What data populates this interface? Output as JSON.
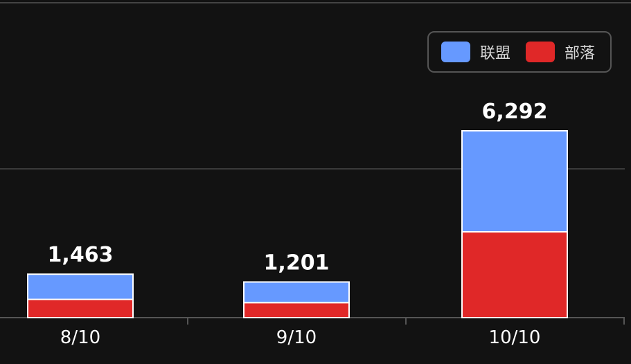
{
  "chart_data": {
    "type": "bar",
    "stacked": true,
    "categories": [
      "8/10",
      "9/10",
      "10/10"
    ],
    "series": [
      {
        "name": "部落",
        "color": "#e02828",
        "values": [
          615,
          506,
          2890
        ]
      },
      {
        "name": "联盟",
        "color": "#6699ff",
        "values": [
          848,
          695,
          3402
        ]
      }
    ],
    "totals": [
      1463,
      1201,
      6292
    ],
    "total_labels": [
      "1,463",
      "1,201",
      "6,292"
    ],
    "ylim": [
      0,
      8000
    ],
    "grid": true,
    "legend_position": "top-right"
  }
}
